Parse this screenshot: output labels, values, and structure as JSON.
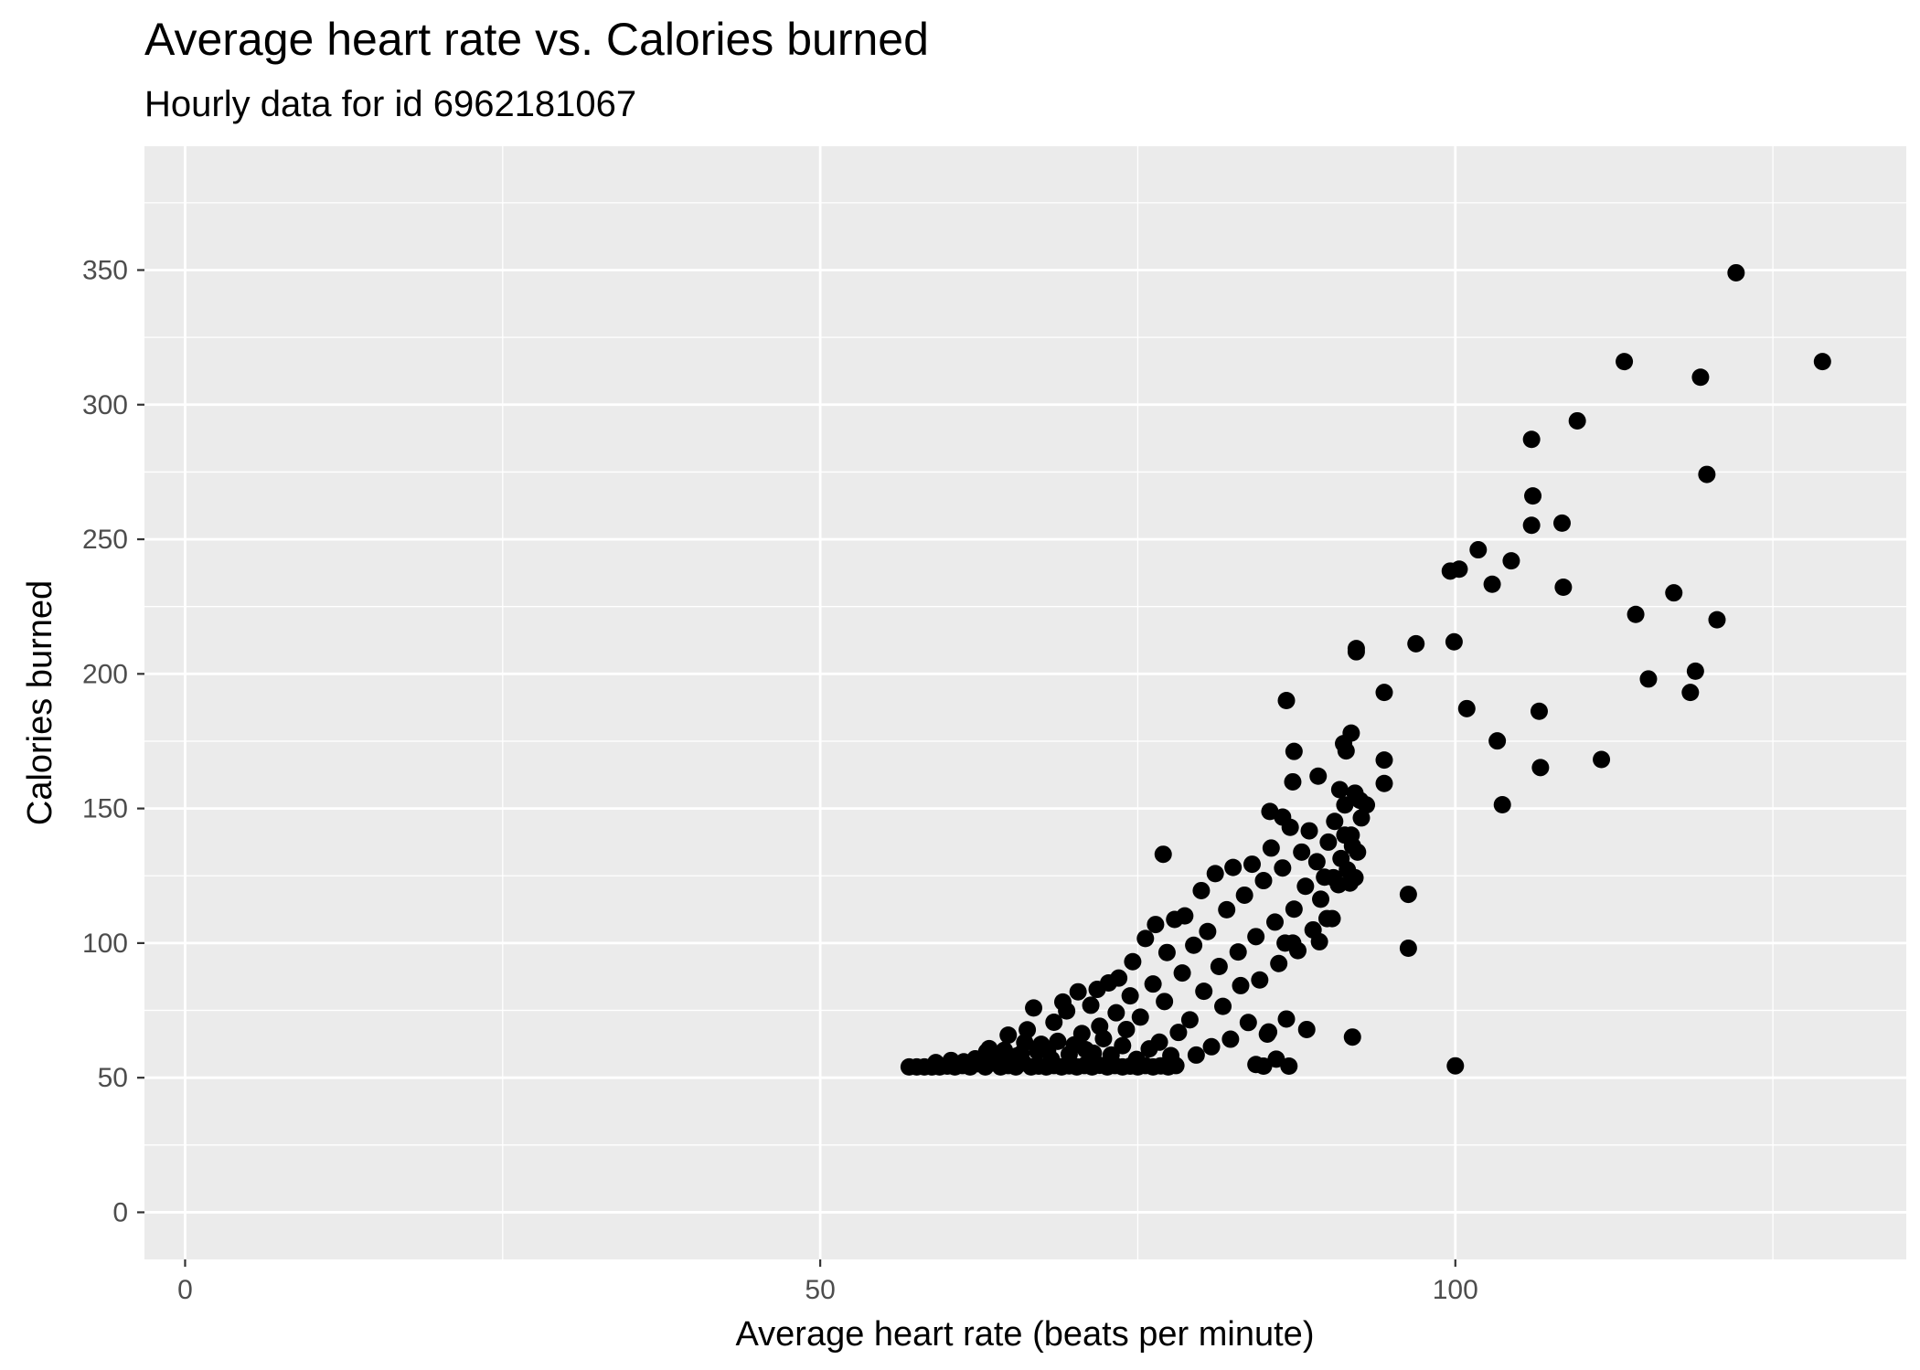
{
  "chart_data": {
    "type": "scatter",
    "title": "Average heart rate vs. Calories burned",
    "subtitle": "Hourly data for id 6962181067",
    "xlabel": "Average heart rate (beats per minute)",
    "ylabel": "Calories burned",
    "xlim": [
      -3.2,
      135.5
    ],
    "ylim": [
      -17.5,
      396
    ],
    "x_ticks": [
      0,
      50,
      100
    ],
    "x_tick_labels": [
      "0",
      "50",
      "100"
    ],
    "y_ticks": [
      0,
      50,
      100,
      150,
      200,
      250,
      300,
      350
    ],
    "y_tick_labels": [
      "0",
      "50",
      "100",
      "150",
      "200",
      "250",
      "300",
      "350"
    ],
    "grid": true,
    "legend": "none",
    "colors": {
      "panel": "#EBEBEB",
      "grid": "#FFFFFF",
      "point": "#000000",
      "tick": "#333333"
    },
    "points": [
      [
        57,
        54
      ],
      [
        57.6,
        54
      ],
      [
        58.2,
        54
      ],
      [
        58.8,
        54
      ],
      [
        59.4,
        54
      ],
      [
        60,
        54.3
      ],
      [
        60.6,
        54
      ],
      [
        61.2,
        54.5
      ],
      [
        61.8,
        54
      ],
      [
        62.4,
        55.2
      ],
      [
        63,
        54
      ],
      [
        63.6,
        55.5
      ],
      [
        64.2,
        54
      ],
      [
        64.8,
        54.5
      ],
      [
        65.4,
        54
      ],
      [
        66,
        55.5
      ],
      [
        66.6,
        54
      ],
      [
        67.2,
        54.3
      ],
      [
        67.8,
        54
      ],
      [
        68.4,
        54.5
      ],
      [
        69,
        54
      ],
      [
        69.6,
        54.4
      ],
      [
        70.2,
        54
      ],
      [
        70.8,
        54.5
      ],
      [
        71.4,
        54
      ],
      [
        72,
        54.6
      ],
      [
        72.6,
        54
      ],
      [
        73.2,
        54.5
      ],
      [
        73.8,
        54
      ],
      [
        74.4,
        54.3
      ],
      [
        75,
        54
      ],
      [
        75.6,
        54.5
      ],
      [
        76.2,
        54
      ],
      [
        76.8,
        54.4
      ],
      [
        77.4,
        54
      ],
      [
        78,
        54.5
      ],
      [
        59.1,
        55.6
      ],
      [
        60.3,
        56.4
      ],
      [
        61.3,
        55.9
      ],
      [
        62.2,
        57
      ],
      [
        63.1,
        59.6
      ],
      [
        63.3,
        60.8
      ],
      [
        63.4,
        56.8
      ],
      [
        64.3,
        57.1
      ],
      [
        64.5,
        60.2
      ],
      [
        64.8,
        65.8
      ],
      [
        65.5,
        58.1
      ],
      [
        65.8,
        58.8
      ],
      [
        66.1,
        63.1
      ],
      [
        66.3,
        67.8
      ],
      [
        66.8,
        75.9
      ],
      [
        67.1,
        59.8
      ],
      [
        67.4,
        62.4
      ],
      [
        67.9,
        60.1
      ],
      [
        68.2,
        56.8
      ],
      [
        68.4,
        70.6
      ],
      [
        68.7,
        63.5
      ],
      [
        69.1,
        78.1
      ],
      [
        69.4,
        74.8
      ],
      [
        69.6,
        58.7
      ],
      [
        70,
        62.2
      ],
      [
        70.3,
        81.9
      ],
      [
        70.6,
        66.4
      ],
      [
        70.9,
        60.4
      ],
      [
        71.3,
        76.9
      ],
      [
        71.5,
        59.1
      ],
      [
        71.8,
        82.8
      ],
      [
        72,
        69.1
      ],
      [
        72.3,
        64.5
      ],
      [
        72.7,
        85.2
      ],
      [
        72.9,
        58.4
      ],
      [
        73.3,
        74.1
      ],
      [
        73.5,
        87
      ],
      [
        73.8,
        61.9
      ],
      [
        74.1,
        67.9
      ],
      [
        74.4,
        80.4
      ],
      [
        74.6,
        93.1
      ],
      [
        74.9,
        56.8
      ],
      [
        75.2,
        72.5
      ],
      [
        75.6,
        101.7
      ],
      [
        75.9,
        60.7
      ],
      [
        76.2,
        84.8
      ],
      [
        76.4,
        106.9
      ],
      [
        76.7,
        63.2
      ],
      [
        77.1,
        78.3
      ],
      [
        77.3,
        96.5
      ],
      [
        77.6,
        58.2
      ],
      [
        77.9,
        108.8
      ],
      [
        78.2,
        66.8
      ],
      [
        78.5,
        88.9
      ],
      [
        78.7,
        110.1
      ],
      [
        79.1,
        71.5
      ],
      [
        79.4,
        99.2
      ],
      [
        79.6,
        58.4
      ],
      [
        80,
        119.5
      ],
      [
        80.2,
        82.1
      ],
      [
        80.5,
        104.3
      ],
      [
        80.8,
        61.5
      ],
      [
        81.1,
        125.8
      ],
      [
        81.4,
        91.3
      ],
      [
        81.7,
        76.5
      ],
      [
        82,
        112.4
      ],
      [
        82.3,
        64.3
      ],
      [
        82.5,
        128.1
      ],
      [
        82.9,
        96.7
      ],
      [
        83.1,
        84.2
      ],
      [
        83.4,
        117.8
      ],
      [
        83.7,
        70.5
      ],
      [
        84,
        129.3
      ],
      [
        84.3,
        102.4
      ],
      [
        84.6,
        86.3
      ],
      [
        84.9,
        123.2
      ],
      [
        85.2,
        66.2
      ],
      [
        85.5,
        135.3
      ],
      [
        85.8,
        107.8
      ],
      [
        86.1,
        92.4
      ],
      [
        86.4,
        127.9
      ],
      [
        86.7,
        71.8
      ],
      [
        87,
        143
      ],
      [
        87.3,
        112.6
      ],
      [
        87.6,
        97.2
      ],
      [
        87.9,
        133.8
      ],
      [
        88.2,
        121.1
      ],
      [
        88.5,
        141.7
      ],
      [
        88.8,
        104.9
      ],
      [
        89.1,
        130.2
      ],
      [
        89.4,
        116.3
      ],
      [
        89.7,
        124.5
      ],
      [
        90,
        137.5
      ],
      [
        90.3,
        109.1
      ],
      [
        90.5,
        145.2
      ],
      [
        90.8,
        121.7
      ],
      [
        91,
        131.4
      ],
      [
        91.3,
        151.3
      ],
      [
        91.5,
        127.2
      ],
      [
        91.8,
        140.1
      ],
      [
        92.1,
        155.7
      ],
      [
        92.3,
        133.8
      ],
      [
        92.6,
        146.5
      ],
      [
        93,
        151.3
      ],
      [
        86.7,
        190.1
      ],
      [
        87.3,
        171.2
      ],
      [
        87.2,
        159.9
      ],
      [
        86.4,
        146.8
      ],
      [
        85.4,
        148.9
      ],
      [
        89.2,
        162
      ],
      [
        91.2,
        174.1
      ],
      [
        91.8,
        178
      ],
      [
        92.2,
        208.2
      ],
      [
        92.2,
        209.4
      ],
      [
        94.4,
        193.1
      ],
      [
        94.4,
        168
      ],
      [
        94.4,
        159.3
      ],
      [
        90.9,
        157
      ],
      [
        92.5,
        153
      ],
      [
        91.4,
        171.4
      ],
      [
        91.3,
        140.1
      ],
      [
        91.9,
        136.1
      ],
      [
        92.1,
        124.3
      ],
      [
        90.4,
        124.3
      ],
      [
        89.9,
        109.1
      ],
      [
        91.7,
        122.3
      ],
      [
        89.3,
        100.5
      ],
      [
        87.2,
        100
      ],
      [
        86.6,
        100
      ],
      [
        88.3,
        67.9
      ],
      [
        85.3,
        67
      ],
      [
        85.9,
        56.9
      ],
      [
        84.3,
        54.9
      ],
      [
        84.9,
        54.3
      ],
      [
        86.9,
        54.3
      ],
      [
        91.9,
        65.1
      ],
      [
        77,
        133
      ],
      [
        96.3,
        118.1
      ],
      [
        96.3,
        98.1
      ],
      [
        100,
        54.4
      ],
      [
        96.9,
        211.2
      ],
      [
        99.6,
        238.2
      ],
      [
        100.3,
        238.9
      ],
      [
        101.8,
        246.1
      ],
      [
        102.9,
        233.3
      ],
      [
        104.4,
        242
      ],
      [
        106,
        287.1
      ],
      [
        106.1,
        266.1
      ],
      [
        106,
        255.2
      ],
      [
        108.4,
        256
      ],
      [
        108.5,
        232.2
      ],
      [
        109.6,
        294
      ],
      [
        99.9,
        211.9
      ],
      [
        100.9,
        187.1
      ],
      [
        103.3,
        175.1
      ],
      [
        103.7,
        151.4
      ],
      [
        106.6,
        186.1
      ],
      [
        106.7,
        165.2
      ],
      [
        111.5,
        168.2
      ],
      [
        113.3,
        316
      ],
      [
        114.2,
        222.1
      ],
      [
        115.2,
        198.1
      ],
      [
        117.2,
        230.1
      ],
      [
        118.5,
        193.1
      ],
      [
        118.9,
        201
      ],
      [
        119.3,
        310.2
      ],
      [
        119.8,
        274.1
      ],
      [
        120.6,
        220.1
      ],
      [
        122.1,
        349
      ],
      [
        128.9,
        316
      ]
    ]
  }
}
